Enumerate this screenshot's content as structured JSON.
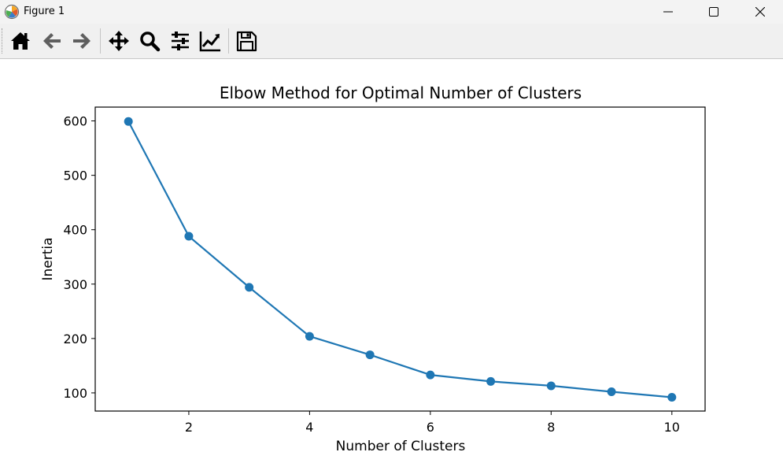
{
  "window": {
    "title": "Figure 1",
    "app_icon": "matplotlib-logo-icon",
    "controls": {
      "minimize": "minimize-icon",
      "maximize": "maximize-icon",
      "close": "close-icon"
    }
  },
  "toolbar": {
    "tools": [
      {
        "id": "home",
        "icon": "home-icon"
      },
      {
        "id": "back",
        "icon": "arrow-left-icon"
      },
      {
        "id": "forward",
        "icon": "arrow-right-icon"
      },
      {
        "id": "pan",
        "icon": "move-icon"
      },
      {
        "id": "zoom",
        "icon": "magnifier-icon"
      },
      {
        "id": "subplots",
        "icon": "sliders-icon"
      },
      {
        "id": "axes",
        "icon": "line-chart-icon"
      },
      {
        "id": "save",
        "icon": "floppy-disk-icon"
      }
    ]
  },
  "chart_data": {
    "type": "line",
    "title": "Elbow Method for Optimal Number of Clusters",
    "xlabel": "Number of Clusters",
    "ylabel": "Inertia",
    "x": [
      1,
      2,
      3,
      4,
      5,
      6,
      7,
      8,
      9,
      10
    ],
    "series": [
      {
        "values": [
          599,
          388,
          294,
          204,
          170,
          133,
          121,
          113,
          102,
          92
        ],
        "color": "#1f77b4",
        "marker": "circle"
      }
    ],
    "xlim": [
      0.45,
      10.55
    ],
    "ylim": [
      66.6,
      625.4
    ],
    "xticks": [
      2,
      4,
      6,
      8,
      10
    ],
    "yticks": [
      100,
      200,
      300,
      400,
      500,
      600
    ],
    "grid": false
  }
}
